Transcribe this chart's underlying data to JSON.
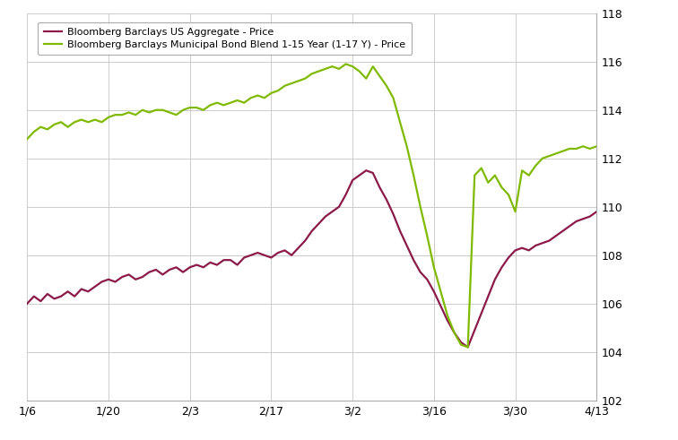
{
  "legend_labels": [
    "Bloomberg Barclays US Aggregate - Price",
    "Bloomberg Barclays Municipal Bond Blend 1-15 Year (1-17 Y) - Price"
  ],
  "line1_color": "#8B1A4A",
  "line2_color": "#7FBA00",
  "xtick_labels": [
    "1/6",
    "1/20",
    "2/3",
    "2/17",
    "3/2",
    "3/16",
    "3/30",
    "4/13"
  ],
  "ylim": [
    102,
    118
  ],
  "yticks": [
    102,
    104,
    106,
    108,
    110,
    112,
    114,
    116,
    118
  ],
  "background_color": "#ffffff",
  "grid_color": "#cccccc",
  "line1_y": [
    106.0,
    106.3,
    106.1,
    106.4,
    106.2,
    106.3,
    106.5,
    106.3,
    106.6,
    106.5,
    106.7,
    106.9,
    107.0,
    106.9,
    107.1,
    107.2,
    107.0,
    107.1,
    107.3,
    107.4,
    107.2,
    107.4,
    107.5,
    107.3,
    107.5,
    107.6,
    107.5,
    107.7,
    107.6,
    107.8,
    107.8,
    107.6,
    107.9,
    108.0,
    108.1,
    108.0,
    107.9,
    108.1,
    108.2,
    108.0,
    108.3,
    108.6,
    109.0,
    109.3,
    109.6,
    109.8,
    110.0,
    110.5,
    111.1,
    111.3,
    111.5,
    111.4,
    110.8,
    110.3,
    109.7,
    109.0,
    108.4,
    107.8,
    107.3,
    107.0,
    106.5,
    105.9,
    105.3,
    104.8,
    104.4,
    104.2,
    104.9,
    105.6,
    106.3,
    107.0,
    107.5,
    107.9,
    108.2,
    108.3,
    108.2,
    108.4,
    108.5,
    108.6,
    108.8,
    109.0,
    109.2,
    109.4,
    109.5,
    109.6,
    109.8
  ],
  "line2_y": [
    112.8,
    113.1,
    113.3,
    113.2,
    113.4,
    113.5,
    113.3,
    113.5,
    113.6,
    113.5,
    113.6,
    113.5,
    113.7,
    113.8,
    113.8,
    113.9,
    113.8,
    114.0,
    113.9,
    114.0,
    114.0,
    113.9,
    113.8,
    114.0,
    114.1,
    114.1,
    114.0,
    114.2,
    114.3,
    114.2,
    114.3,
    114.4,
    114.3,
    114.5,
    114.6,
    114.5,
    114.7,
    114.8,
    115.0,
    115.1,
    115.2,
    115.3,
    115.5,
    115.6,
    115.7,
    115.8,
    115.7,
    115.9,
    115.8,
    115.6,
    115.3,
    115.8,
    115.4,
    115.0,
    114.5,
    113.5,
    112.5,
    111.3,
    110.0,
    108.8,
    107.5,
    106.5,
    105.5,
    104.8,
    104.3,
    104.2,
    111.3,
    111.6,
    111.0,
    111.3,
    110.8,
    110.5,
    109.8,
    111.5,
    111.3,
    111.7,
    112.0,
    112.1,
    112.2,
    112.3,
    112.4,
    112.4,
    112.5,
    112.4,
    112.5
  ]
}
